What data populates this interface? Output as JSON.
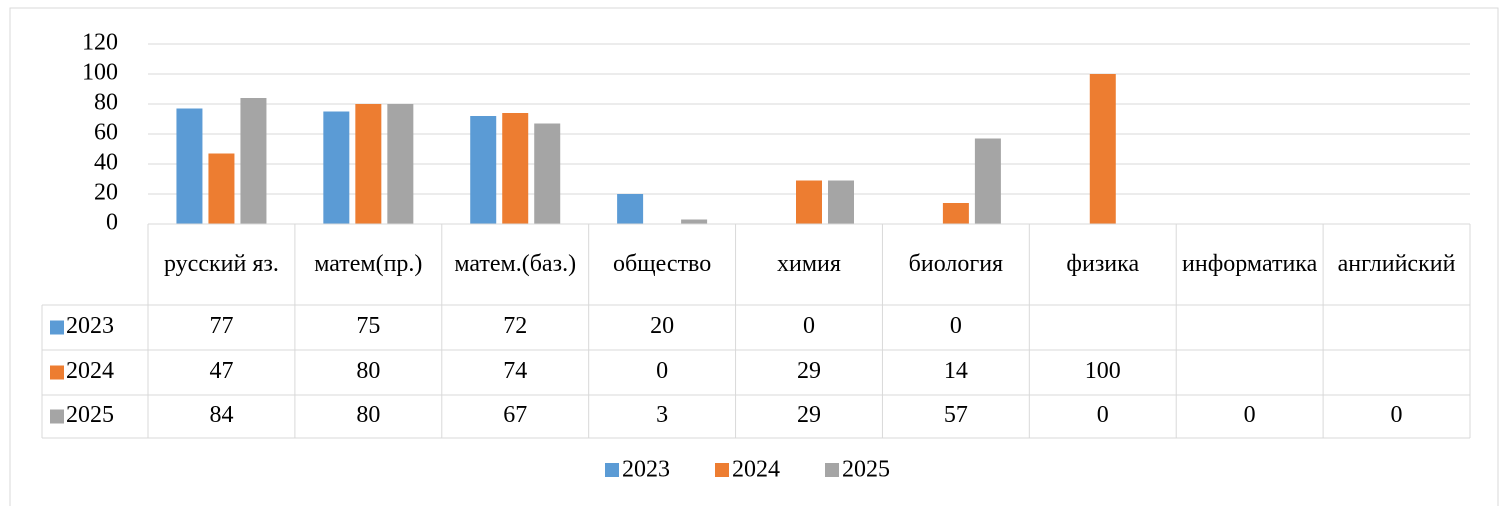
{
  "chart_data": {
    "type": "bar",
    "categories": [
      "русский яз.",
      "матем(пр.)",
      "матем.(баз.)",
      "общество",
      "химия",
      "биология",
      "физика",
      "информатика",
      "английский"
    ],
    "series": [
      {
        "name": "2023",
        "color": "#5b9bd5",
        "values": [
          77,
          75,
          72,
          20,
          0,
          0,
          null,
          null,
          null
        ]
      },
      {
        "name": "2024",
        "color": "#ed7d31",
        "values": [
          47,
          80,
          74,
          0,
          29,
          14,
          100,
          null,
          null
        ]
      },
      {
        "name": "2025",
        "color": "#a5a5a5",
        "values": [
          84,
          80,
          67,
          3,
          29,
          57,
          0,
          0,
          0
        ]
      }
    ],
    "ylim": [
      0,
      120
    ],
    "yticks": [
      0,
      20,
      40,
      60,
      80,
      100,
      120
    ],
    "grid": true,
    "legend": "bottom",
    "data_table": true
  }
}
